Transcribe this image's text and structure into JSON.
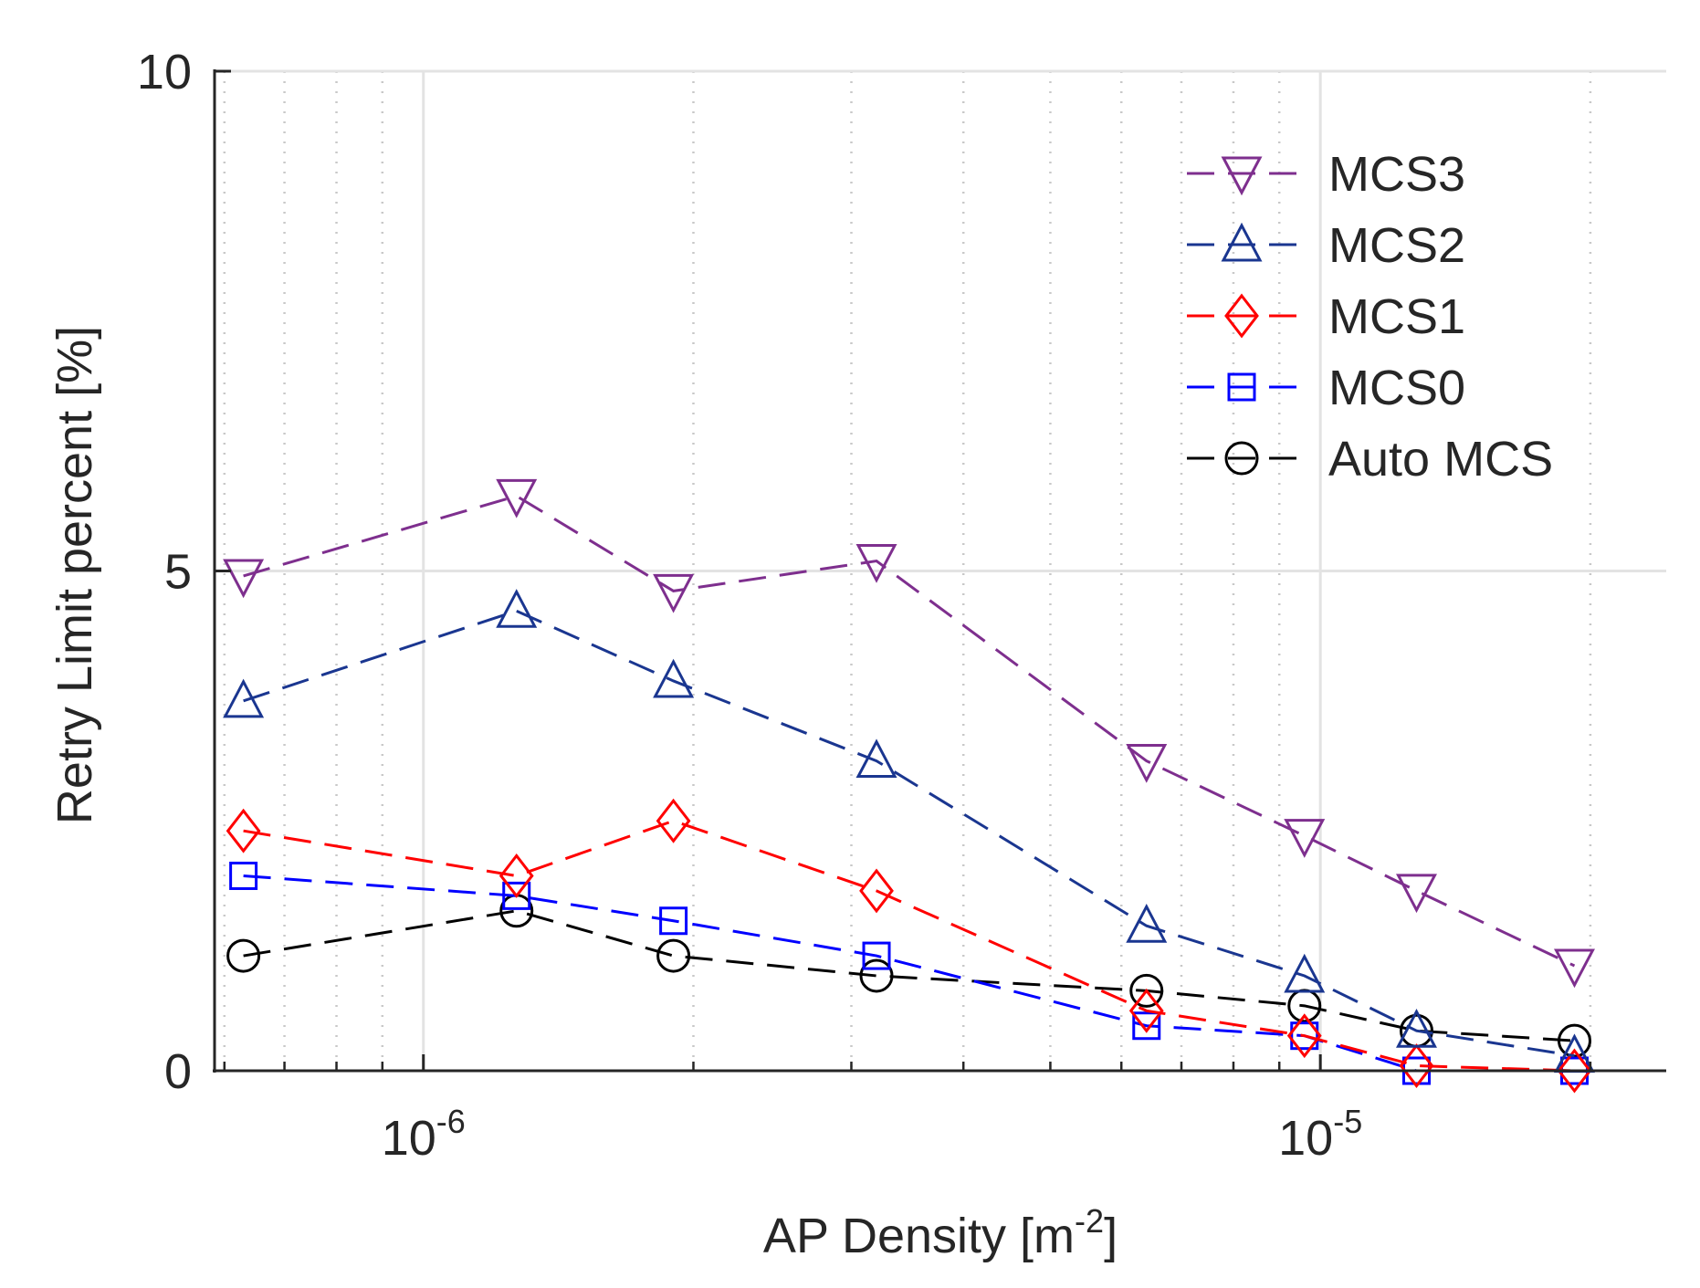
{
  "chart_data": {
    "type": "line",
    "title": "",
    "xlabel": "AP Density [m",
    "xlabel_sup": "-2",
    "xlabel_suffix": "]",
    "ylabel": "Retry Limit percent [%]",
    "xscale": "log",
    "xlim": [
      5.85e-07,
      2.43e-05
    ],
    "ylim": [
      0,
      10
    ],
    "y_ticks": [
      {
        "value": 0,
        "label": "0"
      },
      {
        "value": 5,
        "label": "5"
      },
      {
        "value": 10,
        "label": "10"
      }
    ],
    "x_ticks": [
      {
        "value": 1e-06,
        "base": "10",
        "exp": "-6"
      },
      {
        "value": 1e-05,
        "base": "10",
        "exp": "-5"
      }
    ],
    "grid": true,
    "legend_position": "top-right",
    "x": [
      6.3e-07,
      1.27e-06,
      1.9e-06,
      3.2e-06,
      6.4e-06,
      9.6e-06,
      1.28e-05,
      1.92e-05
    ],
    "series": [
      {
        "name": "MCS3",
        "color": "#7e2f8e",
        "marker": "triangle-down",
        "values": [
          4.95,
          5.75,
          4.8,
          5.1,
          3.1,
          2.35,
          1.8,
          1.05
        ]
      },
      {
        "name": "MCS2",
        "color": "#1a3690",
        "marker": "triangle-up",
        "values": [
          3.7,
          4.6,
          3.9,
          3.1,
          1.45,
          0.95,
          0.4,
          0.15
        ]
      },
      {
        "name": "MCS1",
        "color": "#ff0000",
        "marker": "diamond",
        "values": [
          2.4,
          1.95,
          2.5,
          1.8,
          0.6,
          0.35,
          0.05,
          0.0
        ]
      },
      {
        "name": "MCS0",
        "color": "#0000ff",
        "marker": "square",
        "values": [
          1.95,
          1.75,
          1.5,
          1.15,
          0.45,
          0.35,
          0.0,
          0.0
        ]
      },
      {
        "name": "Auto MCS",
        "color": "#000000",
        "marker": "circle",
        "values": [
          1.15,
          1.6,
          1.15,
          0.95,
          0.8,
          0.65,
          0.4,
          0.3
        ]
      }
    ]
  }
}
